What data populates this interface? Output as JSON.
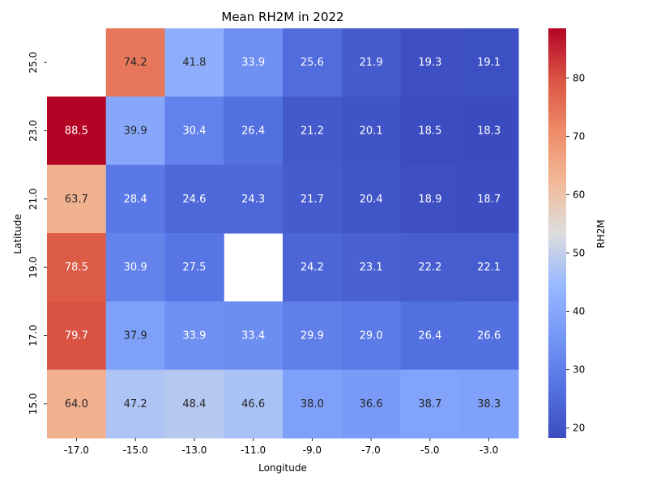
{
  "chart_data": {
    "type": "heatmap",
    "title": "Mean RH2M in 2022",
    "xlabel": "Longitude",
    "ylabel": "Latitude",
    "colorbar_label": "RH2M",
    "colormap": "coolwarm",
    "vmin": 18.3,
    "vmax": 88.5,
    "x": [
      "-17.0",
      "-15.0",
      "-13.0",
      "-11.0",
      "-9.0",
      "-7.0",
      "-5.0",
      "-3.0"
    ],
    "y": [
      "25.0",
      "23.0",
      "21.0",
      "19.0",
      "17.0",
      "15.0"
    ],
    "values": [
      [
        null,
        74.2,
        41.8,
        33.9,
        25.6,
        21.9,
        19.3,
        19.1
      ],
      [
        88.5,
        39.9,
        30.4,
        26.4,
        21.2,
        20.1,
        18.5,
        18.3
      ],
      [
        63.7,
        28.4,
        24.6,
        24.3,
        21.7,
        20.4,
        18.9,
        18.7
      ],
      [
        78.5,
        30.9,
        27.5,
        null,
        24.2,
        23.1,
        22.2,
        22.1
      ],
      [
        79.7,
        37.9,
        33.9,
        33.4,
        29.9,
        29.0,
        26.4,
        26.6
      ],
      [
        64.0,
        47.2,
        48.4,
        46.6,
        38.0,
        36.6,
        38.7,
        38.3
      ]
    ],
    "colorbar_ticks": [
      20,
      30,
      40,
      50,
      60,
      70,
      80
    ]
  }
}
